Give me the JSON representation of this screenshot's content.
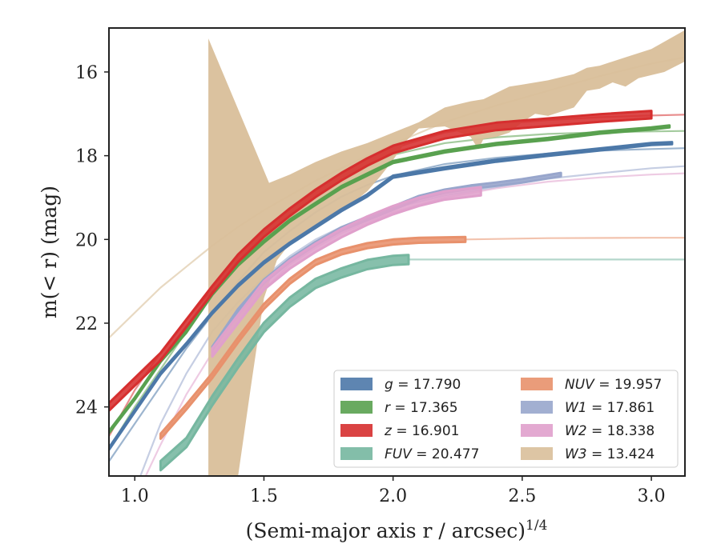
{
  "chart_data": {
    "type": "line",
    "xlabel": "(Semi-major axis r / arcsec)",
    "xlabel_sup": "1/4",
    "ylabel": "m(< r) (mag)",
    "xlim": [
      0.9,
      3.13
    ],
    "ylim": [
      25.65,
      14.95
    ],
    "y_inverted": true,
    "xticks": [
      "1.0",
      "1.5",
      "2.0",
      "2.5",
      "3.0"
    ],
    "yticks": [
      "16",
      "18",
      "20",
      "22",
      "24"
    ],
    "grid": false,
    "legend_position": "lower-right",
    "legend_columns": 2,
    "series": [
      {
        "name": "g = 17.790",
        "band": "g",
        "value": "17.790",
        "color": "#4c78a8",
        "width": 0.05,
        "data": [
          [
            0.9,
            25.0
          ],
          [
            1.0,
            24.1
          ],
          [
            1.1,
            23.2
          ],
          [
            1.2,
            22.5
          ],
          [
            1.3,
            21.75
          ],
          [
            1.4,
            21.1
          ],
          [
            1.5,
            20.55
          ],
          [
            1.6,
            20.1
          ],
          [
            1.7,
            19.7
          ],
          [
            1.8,
            19.3
          ],
          [
            1.9,
            18.95
          ],
          [
            2.0,
            18.5
          ],
          [
            2.2,
            18.3
          ],
          [
            2.4,
            18.12
          ],
          [
            2.6,
            17.98
          ],
          [
            2.8,
            17.85
          ],
          [
            3.0,
            17.72
          ],
          [
            3.08,
            17.7
          ]
        ],
        "model": [
          [
            0.9,
            25.3
          ],
          [
            1.0,
            24.4
          ],
          [
            1.1,
            23.5
          ],
          [
            1.2,
            22.6
          ],
          [
            1.3,
            21.8
          ],
          [
            1.4,
            21.0
          ],
          [
            1.5,
            20.3
          ],
          [
            1.6,
            19.8
          ],
          [
            1.7,
            19.35
          ],
          [
            1.8,
            18.98
          ],
          [
            1.9,
            18.7
          ],
          [
            2.0,
            18.48
          ],
          [
            2.2,
            18.2
          ],
          [
            2.4,
            18.05
          ],
          [
            2.6,
            17.95
          ],
          [
            2.8,
            17.88
          ],
          [
            3.0,
            17.84
          ],
          [
            3.13,
            17.82
          ]
        ]
      },
      {
        "name": "r = 17.365",
        "band": "r",
        "value": "17.365",
        "color": "#59a14f",
        "width": 0.05,
        "data": [
          [
            0.9,
            24.6
          ],
          [
            1.0,
            23.8
          ],
          [
            1.1,
            22.9
          ],
          [
            1.2,
            22.2
          ],
          [
            1.3,
            21.3
          ],
          [
            1.4,
            20.6
          ],
          [
            1.5,
            20.05
          ],
          [
            1.6,
            19.55
          ],
          [
            1.7,
            19.15
          ],
          [
            1.8,
            18.75
          ],
          [
            1.9,
            18.45
          ],
          [
            2.0,
            18.15
          ],
          [
            2.2,
            17.9
          ],
          [
            2.4,
            17.72
          ],
          [
            2.6,
            17.6
          ],
          [
            2.8,
            17.45
          ],
          [
            3.0,
            17.35
          ],
          [
            3.07,
            17.3
          ]
        ],
        "model": [
          [
            0.9,
            25.0
          ],
          [
            1.0,
            24.0
          ],
          [
            1.1,
            23.1
          ],
          [
            1.2,
            22.2
          ],
          [
            1.3,
            21.3
          ],
          [
            1.4,
            20.5
          ],
          [
            1.5,
            19.85
          ],
          [
            1.6,
            19.3
          ],
          [
            1.7,
            18.85
          ],
          [
            1.8,
            18.5
          ],
          [
            1.9,
            18.2
          ],
          [
            2.0,
            17.98
          ],
          [
            2.2,
            17.7
          ],
          [
            2.4,
            17.56
          ],
          [
            2.6,
            17.48
          ],
          [
            2.8,
            17.44
          ],
          [
            3.0,
            17.42
          ],
          [
            3.13,
            17.41
          ]
        ]
      },
      {
        "name": "z = 16.901",
        "band": "z",
        "value": "16.901",
        "color": "#d62f2f",
        "width": 0.18,
        "data": [
          [
            0.9,
            24.0
          ],
          [
            1.0,
            23.4
          ],
          [
            1.1,
            22.8
          ],
          [
            1.2,
            22.0
          ],
          [
            1.3,
            21.2
          ],
          [
            1.4,
            20.45
          ],
          [
            1.5,
            19.85
          ],
          [
            1.6,
            19.35
          ],
          [
            1.7,
            18.9
          ],
          [
            1.8,
            18.5
          ],
          [
            1.9,
            18.15
          ],
          [
            2.0,
            17.85
          ],
          [
            2.2,
            17.5
          ],
          [
            2.4,
            17.3
          ],
          [
            2.6,
            17.2
          ],
          [
            2.8,
            17.1
          ],
          [
            3.0,
            17.02
          ]
        ],
        "model": [
          [
            0.9,
            24.7
          ],
          [
            1.0,
            23.6
          ],
          [
            1.1,
            22.7
          ],
          [
            1.2,
            21.9
          ],
          [
            1.3,
            21.2
          ],
          [
            1.4,
            20.45
          ],
          [
            1.5,
            19.8
          ],
          [
            1.6,
            19.25
          ],
          [
            1.7,
            18.8
          ],
          [
            1.8,
            18.42
          ],
          [
            1.9,
            18.1
          ],
          [
            2.0,
            17.82
          ],
          [
            2.2,
            17.45
          ],
          [
            2.4,
            17.25
          ],
          [
            2.6,
            17.15
          ],
          [
            2.8,
            17.08
          ],
          [
            3.0,
            17.04
          ],
          [
            3.13,
            17.02
          ]
        ]
      },
      {
        "name": "FUV = 20.477",
        "band": "FUV",
        "value": "20.477",
        "color": "#76b7a0",
        "width": 0.22,
        "data": [
          [
            1.1,
            25.4
          ],
          [
            1.2,
            24.85
          ],
          [
            1.3,
            23.85
          ],
          [
            1.4,
            22.95
          ],
          [
            1.5,
            22.1
          ],
          [
            1.6,
            21.5
          ],
          [
            1.7,
            21.05
          ],
          [
            1.8,
            20.8
          ],
          [
            1.9,
            20.6
          ],
          [
            2.0,
            20.5
          ],
          [
            2.06,
            20.48
          ]
        ],
        "model": [
          [
            2.06,
            20.48
          ],
          [
            2.5,
            20.48
          ],
          [
            3.0,
            20.48
          ],
          [
            3.13,
            20.48
          ]
        ]
      },
      {
        "name": "NUV = 19.957",
        "band": "NUV",
        "value": "19.957",
        "color": "#e8916c",
        "width": 0.12,
        "data": [
          [
            1.1,
            24.7
          ],
          [
            1.2,
            24.0
          ],
          [
            1.3,
            23.25
          ],
          [
            1.4,
            22.4
          ],
          [
            1.5,
            21.6
          ],
          [
            1.6,
            21.0
          ],
          [
            1.7,
            20.55
          ],
          [
            1.8,
            20.3
          ],
          [
            1.9,
            20.15
          ],
          [
            2.0,
            20.06
          ],
          [
            2.1,
            20.02
          ],
          [
            2.28,
            20.0
          ]
        ],
        "model": [
          [
            2.28,
            20.0
          ],
          [
            2.6,
            19.97
          ],
          [
            3.0,
            19.96
          ],
          [
            3.13,
            19.96
          ]
        ]
      },
      {
        "name": "W1 = 17.861",
        "band": "W1",
        "value": "17.861",
        "color": "#98a6cc",
        "width": 0.08,
        "data": [
          [
            1.3,
            22.6
          ],
          [
            1.4,
            21.7
          ],
          [
            1.5,
            21.0
          ],
          [
            1.6,
            20.5
          ],
          [
            1.7,
            20.1
          ],
          [
            1.8,
            19.75
          ],
          [
            1.9,
            19.5
          ],
          [
            2.0,
            19.25
          ],
          [
            2.1,
            19.0
          ],
          [
            2.2,
            18.85
          ],
          [
            2.3,
            18.75
          ],
          [
            2.4,
            18.68
          ],
          [
            2.5,
            18.6
          ],
          [
            2.65,
            18.45
          ]
        ],
        "model": [
          [
            0.9,
            27.0
          ],
          [
            1.0,
            26.0
          ],
          [
            1.1,
            24.4
          ],
          [
            1.2,
            23.2
          ],
          [
            1.3,
            22.2
          ],
          [
            1.4,
            21.5
          ],
          [
            1.5,
            20.9
          ],
          [
            1.6,
            20.4
          ],
          [
            1.7,
            20.0
          ],
          [
            1.8,
            19.7
          ],
          [
            1.9,
            19.45
          ],
          [
            2.0,
            19.25
          ],
          [
            2.2,
            18.95
          ],
          [
            2.4,
            18.75
          ],
          [
            2.6,
            18.55
          ],
          [
            2.8,
            18.42
          ],
          [
            3.0,
            18.3
          ],
          [
            3.13,
            18.25
          ]
        ]
      },
      {
        "name": "W2 = 18.338",
        "band": "W2",
        "value": "18.338",
        "color": "#e0a0cc",
        "width": 0.2,
        "data": [
          [
            1.3,
            22.7
          ],
          [
            1.4,
            21.9
          ],
          [
            1.5,
            21.1
          ],
          [
            1.6,
            20.6
          ],
          [
            1.7,
            20.2
          ],
          [
            1.8,
            19.85
          ],
          [
            1.9,
            19.55
          ],
          [
            2.0,
            19.3
          ],
          [
            2.1,
            19.1
          ],
          [
            2.2,
            18.95
          ],
          [
            2.34,
            18.85
          ]
        ],
        "model": [
          [
            0.9,
            27.0
          ],
          [
            1.0,
            26.2
          ],
          [
            1.1,
            24.9
          ],
          [
            1.2,
            23.7
          ],
          [
            1.3,
            22.7
          ],
          [
            1.4,
            21.9
          ],
          [
            1.5,
            21.2
          ],
          [
            1.6,
            20.6
          ],
          [
            1.7,
            20.2
          ],
          [
            1.8,
            19.85
          ],
          [
            1.9,
            19.6
          ],
          [
            2.0,
            19.35
          ],
          [
            2.2,
            19.0
          ],
          [
            2.4,
            18.78
          ],
          [
            2.6,
            18.62
          ],
          [
            2.8,
            18.52
          ],
          [
            3.0,
            18.45
          ],
          [
            3.13,
            18.42
          ]
        ]
      }
    ],
    "W3": {
      "name": "W3 = 13.424",
      "band": "W3",
      "value": "13.424",
      "color": "#d9bf9a",
      "upper": [
        [
          1.285,
          15.2
        ],
        [
          1.52,
          18.65
        ],
        [
          1.6,
          18.45
        ],
        [
          1.7,
          18.15
        ],
        [
          1.8,
          17.9
        ],
        [
          1.9,
          17.7
        ],
        [
          2.0,
          17.45
        ],
        [
          2.1,
          17.2
        ],
        [
          2.2,
          16.85
        ],
        [
          2.3,
          16.7
        ],
        [
          2.35,
          16.65
        ],
        [
          2.4,
          16.5
        ],
        [
          2.45,
          16.35
        ],
        [
          2.5,
          16.3
        ],
        [
          2.6,
          16.2
        ],
        [
          2.7,
          16.05
        ],
        [
          2.75,
          15.9
        ],
        [
          2.8,
          15.85
        ],
        [
          2.9,
          15.65
        ],
        [
          3.0,
          15.45
        ],
        [
          3.13,
          15.0
        ]
      ],
      "lower": [
        [
          3.13,
          15.75
        ],
        [
          3.05,
          16.0
        ],
        [
          2.95,
          16.15
        ],
        [
          2.9,
          16.35
        ],
        [
          2.85,
          16.25
        ],
        [
          2.8,
          16.4
        ],
        [
          2.75,
          16.45
        ],
        [
          2.7,
          16.85
        ],
        [
          2.6,
          17.05
        ],
        [
          2.55,
          17.0
        ],
        [
          2.5,
          17.2
        ],
        [
          2.45,
          17.45
        ],
        [
          2.4,
          17.55
        ],
        [
          2.35,
          17.6
        ],
        [
          2.33,
          17.85
        ],
        [
          2.3,
          17.55
        ],
        [
          2.2,
          17.3
        ],
        [
          2.1,
          17.35
        ],
        [
          2.05,
          17.65
        ],
        [
          2.0,
          18.1
        ],
        [
          1.95,
          18.5
        ],
        [
          1.9,
          18.85
        ],
        [
          1.8,
          19.35
        ],
        [
          1.7,
          19.7
        ],
        [
          1.6,
          20.1
        ],
        [
          1.55,
          20.5
        ],
        [
          1.5,
          21.4
        ],
        [
          1.45,
          23.5
        ],
        [
          1.4,
          25.65
        ],
        [
          1.285,
          25.65
        ]
      ],
      "model": [
        [
          0.9,
          22.35
        ],
        [
          1.0,
          21.75
        ],
        [
          1.1,
          21.15
        ],
        [
          1.2,
          20.65
        ],
        [
          1.3,
          20.15
        ],
        [
          1.4,
          19.7
        ],
        [
          1.5,
          19.3
        ],
        [
          1.6,
          18.95
        ],
        [
          1.7,
          18.6
        ],
        [
          1.8,
          18.3
        ],
        [
          1.9,
          18.0
        ],
        [
          2.0,
          17.72
        ],
        [
          2.2,
          17.2
        ],
        [
          2.4,
          16.8
        ],
        [
          2.6,
          16.45
        ],
        [
          2.8,
          16.1
        ],
        [
          3.0,
          15.8
        ],
        [
          3.13,
          15.65
        ]
      ]
    }
  }
}
